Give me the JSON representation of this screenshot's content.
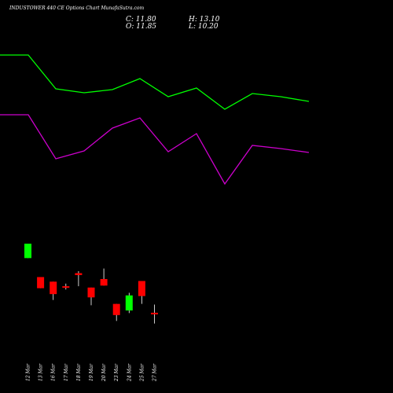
{
  "header": {
    "title": "INDUSTOWER 440  CE Options  Chart MunafaSutra.com",
    "close": "C: 11.80",
    "open": "O: 11.85",
    "high": "H: 13.10",
    "low": "L: 10.20"
  },
  "colors": {
    "background": "#000000",
    "bullish": "#00ff00",
    "bearish": "#ff0000",
    "upper_line": "#00ff00",
    "lower_line": "#cc00cc",
    "text": "#ffffff",
    "wick": "#ffffff"
  },
  "chart_data": {
    "type": "candlestick",
    "categories": [
      "12 Mar",
      "13 Mar",
      "16 Mar",
      "17 Mar",
      "18 Mar",
      "19 Mar",
      "20 Mar",
      "23 Mar",
      "24 Mar",
      "25 Mar",
      "27 Mar"
    ],
    "price_range": [
      8.0,
      32.0
    ],
    "candles": [
      {
        "date": "12 Mar",
        "open": 20.2,
        "high": 22.4,
        "low": 20.2,
        "close": 22.4
      },
      {
        "date": "13 Mar",
        "open": 17.3,
        "high": 17.3,
        "low": 15.6,
        "close": 15.6
      },
      {
        "date": "16 Mar",
        "open": 16.6,
        "high": 16.6,
        "low": 13.8,
        "close": 14.7
      },
      {
        "date": "17 Mar",
        "open": 15.9,
        "high": 16.3,
        "low": 15.4,
        "close": 15.8
      },
      {
        "date": "18 Mar",
        "open": 17.9,
        "high": 18.2,
        "low": 15.9,
        "close": 17.6
      },
      {
        "date": "19 Mar",
        "open": 15.7,
        "high": 15.7,
        "low": 13.0,
        "close": 14.2
      },
      {
        "date": "20 Mar",
        "open": 17.0,
        "high": 18.6,
        "low": 16.0,
        "close": 16.0
      },
      {
        "date": "23 Mar",
        "open": 13.2,
        "high": 13.2,
        "low": 10.6,
        "close": 11.5
      },
      {
        "date": "24 Mar",
        "open": 12.2,
        "high": 14.9,
        "low": 11.8,
        "close": 14.5
      },
      {
        "date": "25 Mar",
        "open": 16.7,
        "high": 16.7,
        "low": 13.2,
        "close": 14.4
      },
      {
        "date": "27 Mar",
        "open": 11.85,
        "high": 13.1,
        "low": 10.2,
        "close": 11.8
      }
    ],
    "upper_line": [
      70,
      70,
      113,
      118,
      114,
      100,
      123,
      112,
      139,
      119,
      123,
      129
    ],
    "lower_line": [
      146,
      146,
      202,
      192,
      163,
      150,
      193,
      170,
      234,
      185,
      189,
      194
    ]
  }
}
